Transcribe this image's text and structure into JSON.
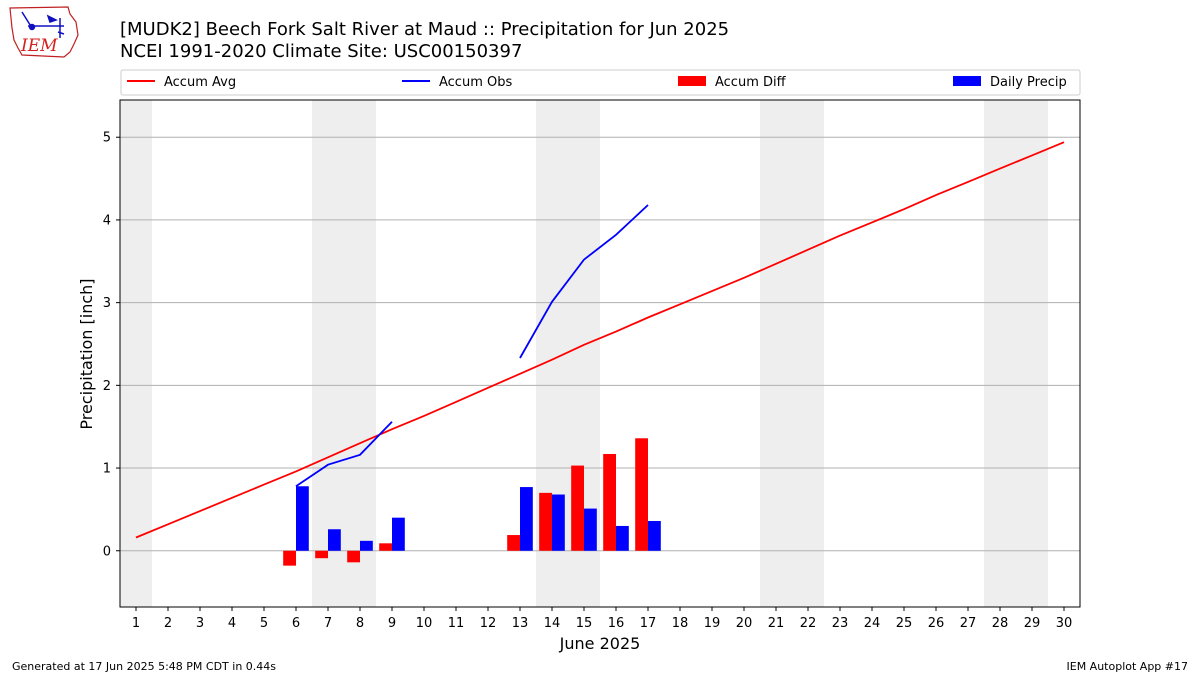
{
  "header": {
    "title_line1": "[MUDK2] Beech Fork Salt River at Maud :: Precipitation for Jun 2025",
    "title_line2": "NCEI 1991-2020 Climate Site: USC00150397",
    "logo_text": "IEM"
  },
  "footer": {
    "generated": "Generated at 17 Jun 2025 5:48 PM CDT in 0.44s",
    "app": "IEM Autoplot App #17"
  },
  "colors": {
    "avg": "#ff0000",
    "obs": "#0000ff",
    "diff": "#ff0000",
    "daily": "#0000ff",
    "weekend_shade": "#eeeeee",
    "grid": "#b0b0b0"
  },
  "chart_data": {
    "type": "bar",
    "title": "[MUDK2] Beech Fork Salt River at Maud :: Precipitation for Jun 2025",
    "subtitle": "NCEI 1991-2020 Climate Site: USC00150397",
    "xlabel": "June 2025",
    "ylabel": "Precipitation [inch]",
    "xlim": [
      0.5,
      30.5
    ],
    "ylim": [
      -0.68,
      5.45
    ],
    "yticks": [
      0,
      1,
      2,
      3,
      4,
      5
    ],
    "x": [
      1,
      2,
      3,
      4,
      5,
      6,
      7,
      8,
      9,
      10,
      11,
      12,
      13,
      14,
      15,
      16,
      17,
      18,
      19,
      20,
      21,
      22,
      23,
      24,
      25,
      26,
      27,
      28,
      29,
      30
    ],
    "grid": "y",
    "legend_placement": "top",
    "weekend_days": [
      1,
      7,
      8,
      14,
      15,
      21,
      22,
      28,
      29
    ],
    "series": [
      {
        "name": "Accum Avg",
        "kind": "line",
        "x": [
          1,
          2,
          3,
          4,
          5,
          6,
          7,
          8,
          9,
          10,
          11,
          12,
          13,
          14,
          15,
          16,
          17,
          18,
          19,
          20,
          21,
          22,
          23,
          24,
          25,
          26,
          27,
          28,
          29,
          30
        ],
        "values": [
          0.16,
          0.32,
          0.48,
          0.64,
          0.8,
          0.96,
          1.13,
          1.3,
          1.47,
          1.63,
          1.8,
          1.97,
          2.14,
          2.31,
          2.49,
          2.65,
          2.82,
          2.98,
          3.14,
          3.3,
          3.47,
          3.64,
          3.81,
          3.97,
          4.13,
          4.3,
          4.46,
          4.62,
          4.78,
          4.94
        ]
      },
      {
        "name": "Accum Obs",
        "kind": "line",
        "x": [
          6,
          7,
          8,
          9,
          10,
          11,
          12,
          13,
          14,
          15,
          16,
          17
        ],
        "values": [
          0.78,
          1.04,
          1.16,
          1.56,
          null,
          null,
          null,
          2.33,
          3.01,
          3.52,
          3.82,
          4.18
        ]
      },
      {
        "name": "Accum Diff",
        "kind": "bar",
        "x": [
          6,
          7,
          8,
          9,
          13,
          14,
          15,
          16,
          17
        ],
        "values": [
          -0.18,
          -0.09,
          -0.14,
          0.09,
          0.19,
          0.7,
          1.03,
          1.17,
          1.36
        ]
      },
      {
        "name": "Daily Precip",
        "kind": "bar",
        "x": [
          6,
          7,
          8,
          9,
          13,
          14,
          15,
          16,
          17
        ],
        "values": [
          0.78,
          0.26,
          0.12,
          0.4,
          0.77,
          0.68,
          0.51,
          0.3,
          0.36
        ]
      }
    ]
  }
}
